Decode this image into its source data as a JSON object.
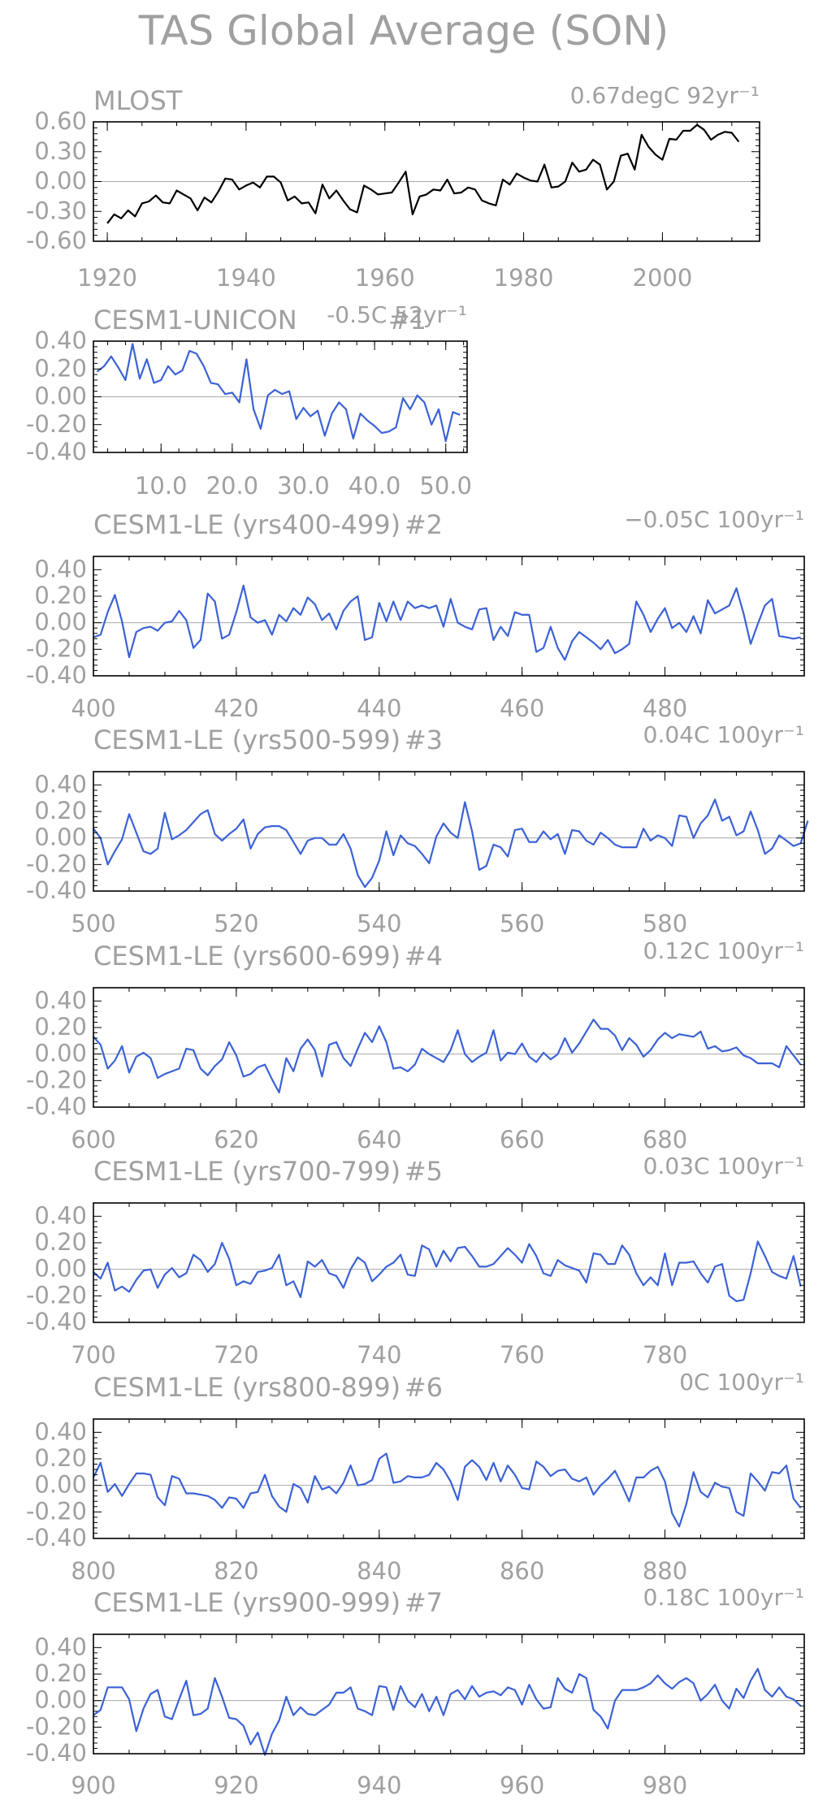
{
  "title": "TAS Global Average (SON)",
  "colors": {
    "observed": "#000000",
    "model": "#3b62d6",
    "zero_line": "#a8a8a8",
    "text": "#a0a0a0"
  },
  "chart_data": [
    {
      "type": "line",
      "label": "MLOST",
      "trend": "0.67degC 92yr⁻¹",
      "xlim": [
        1918,
        2014
      ],
      "ylim": [
        -0.6,
        0.6
      ],
      "xticks": [
        1920,
        1940,
        1960,
        1980,
        2000
      ],
      "yticks": [
        -0.6,
        -0.3,
        0.0,
        0.3,
        0.6
      ],
      "yticklabels": [
        "-0.60",
        "-0.30",
        "0.00",
        "0.30",
        "0.60"
      ],
      "color": "observed",
      "x_start": 1920,
      "x_step": 1,
      "y": [
        -0.42,
        -0.33,
        -0.37,
        -0.29,
        -0.35,
        -0.22,
        -0.2,
        -0.14,
        -0.21,
        -0.22,
        -0.09,
        -0.13,
        -0.17,
        -0.29,
        -0.16,
        -0.21,
        -0.1,
        0.03,
        0.02,
        -0.08,
        -0.04,
        -0.01,
        -0.06,
        0.05,
        0.05,
        -0.01,
        -0.19,
        -0.15,
        -0.22,
        -0.21,
        -0.32,
        -0.03,
        -0.17,
        -0.09,
        -0.19,
        -0.28,
        -0.31,
        -0.04,
        -0.08,
        -0.13,
        -0.12,
        -0.11,
        -0.01,
        0.1,
        -0.33,
        -0.15,
        -0.13,
        -0.08,
        -0.09,
        0.02,
        -0.12,
        -0.11,
        -0.06,
        -0.08,
        -0.19,
        -0.22,
        -0.24,
        0.02,
        -0.03,
        0.08,
        0.04,
        0.01,
        0.0,
        0.17,
        -0.06,
        -0.05,
        0.0,
        0.19,
        0.1,
        0.12,
        0.22,
        0.17,
        -0.08,
        0.0,
        0.26,
        0.28,
        0.12,
        0.47,
        0.35,
        0.27,
        0.22,
        0.43,
        0.42,
        0.51,
        0.51,
        0.57,
        0.52,
        0.42,
        0.47,
        0.5,
        0.49,
        0.4
      ]
    },
    {
      "type": "line",
      "label": "CESM1-UNICON",
      "number": "#1",
      "trend": "-0.5C 52yr⁻¹",
      "xlim": [
        0.5,
        53
      ],
      "ylim": [
        -0.4,
        0.4
      ],
      "xticks": [
        10,
        20,
        30,
        40,
        50
      ],
      "xticklabels": [
        "10.0",
        "20.0",
        "30.0",
        "40.0",
        "50.0"
      ],
      "yticks": [
        -0.4,
        -0.2,
        0.0,
        0.2,
        0.4
      ],
      "yticklabels": [
        "-0.40",
        "-0.20",
        "0.00",
        "0.20",
        "0.40"
      ],
      "color": "model",
      "x_start": 1,
      "x_step": 1,
      "y": [
        0.18,
        0.22,
        0.29,
        0.21,
        0.12,
        0.38,
        0.13,
        0.27,
        0.1,
        0.12,
        0.22,
        0.16,
        0.19,
        0.33,
        0.31,
        0.22,
        0.1,
        0.09,
        0.02,
        0.03,
        -0.04,
        0.27,
        -0.09,
        -0.23,
        0.01,
        0.05,
        0.02,
        0.04,
        -0.16,
        -0.08,
        -0.14,
        -0.1,
        -0.28,
        -0.12,
        -0.04,
        -0.09,
        -0.3,
        -0.12,
        -0.17,
        -0.21,
        -0.26,
        -0.25,
        -0.22,
        -0.01,
        -0.09,
        0.01,
        -0.04,
        -0.2,
        -0.09,
        -0.32,
        -0.11,
        -0.13
      ]
    },
    {
      "type": "line",
      "label": "CESM1-LE (yrs400-499)",
      "number": "#2",
      "trend": "−0.05C 100yr⁻¹",
      "xlim": [
        400,
        499.5
      ],
      "ylim": [
        -0.4,
        0.5
      ],
      "xticks": [
        400,
        420,
        440,
        460,
        480
      ],
      "yticks": [
        -0.4,
        -0.2,
        0.0,
        0.2,
        0.4
      ],
      "yticklabels": [
        "-0.40",
        "-0.20",
        "0.00",
        "0.20",
        "0.40"
      ],
      "color": "model",
      "x_start": 400,
      "x_step": 1,
      "y": [
        -0.11,
        -0.09,
        0.08,
        0.21,
        0.01,
        -0.26,
        -0.07,
        -0.04,
        -0.03,
        -0.06,
        0.0,
        0.01,
        0.09,
        0.02,
        -0.19,
        -0.13,
        0.22,
        0.16,
        -0.12,
        -0.09,
        0.08,
        0.28,
        0.04,
        0.0,
        0.02,
        -0.09,
        0.06,
        0.01,
        0.11,
        0.06,
        0.19,
        0.14,
        0.02,
        0.07,
        -0.05,
        0.09,
        0.16,
        0.2,
        -0.13,
        -0.11,
        0.15,
        0.01,
        0.16,
        0.02,
        0.16,
        0.11,
        0.13,
        0.11,
        0.13,
        -0.03,
        0.18,
        0.0,
        -0.03,
        -0.05,
        0.1,
        0.11,
        -0.13,
        -0.03,
        -0.1,
        0.08,
        0.06,
        0.06,
        -0.22,
        -0.19,
        -0.03,
        -0.19,
        -0.28,
        -0.14,
        -0.07,
        -0.11,
        -0.15,
        -0.2,
        -0.13,
        -0.23,
        -0.2,
        -0.16,
        0.16,
        0.06,
        -0.07,
        0.03,
        0.11,
        -0.04,
        0.0,
        -0.07,
        0.05,
        -0.08,
        0.17,
        0.07,
        0.1,
        0.13,
        0.26,
        0.07,
        -0.16,
        -0.01,
        0.13,
        0.18,
        -0.1,
        -0.11,
        -0.12,
        -0.11
      ]
    },
    {
      "type": "line",
      "label": "CESM1-LE (yrs500-599)",
      "number": "#3",
      "trend": "0.04C 100yr⁻¹",
      "xlim": [
        500,
        599.5
      ],
      "ylim": [
        -0.4,
        0.5
      ],
      "xticks": [
        500,
        520,
        540,
        560,
        580
      ],
      "yticks": [
        -0.4,
        -0.2,
        0.0,
        0.2,
        0.4
      ],
      "yticklabels": [
        "-0.40",
        "-0.20",
        "0.00",
        "0.20",
        "0.40"
      ],
      "color": "model",
      "x_start": 500,
      "x_step": 1,
      "y": [
        0.07,
        0.0,
        -0.2,
        -0.1,
        -0.01,
        0.18,
        0.04,
        -0.1,
        -0.12,
        -0.08,
        0.19,
        -0.01,
        0.02,
        0.06,
        0.12,
        0.18,
        0.21,
        0.03,
        -0.02,
        0.03,
        0.07,
        0.14,
        -0.08,
        0.03,
        0.08,
        0.09,
        0.09,
        0.06,
        -0.03,
        -0.12,
        -0.02,
        0.0,
        0.0,
        -0.05,
        -0.05,
        0.03,
        -0.08,
        -0.28,
        -0.37,
        -0.3,
        -0.17,
        0.05,
        -0.13,
        0.02,
        -0.04,
        -0.06,
        -0.12,
        -0.19,
        0.01,
        0.11,
        0.04,
        0.0,
        0.27,
        0.05,
        -0.24,
        -0.21,
        -0.05,
        -0.07,
        -0.14,
        0.06,
        0.07,
        -0.03,
        -0.03,
        0.05,
        -0.01,
        0.03,
        -0.12,
        0.06,
        0.05,
        -0.02,
        -0.05,
        0.04,
        0.0,
        -0.05,
        -0.07,
        -0.07,
        -0.07,
        0.07,
        -0.02,
        0.02,
        0.0,
        -0.06,
        0.17,
        0.16,
        0.0,
        0.11,
        0.17,
        0.29,
        0.13,
        0.16,
        0.02,
        0.05,
        0.2,
        0.06,
        -0.12,
        -0.08,
        0.02,
        -0.02,
        -0.06,
        -0.04,
        0.13
      ]
    },
    {
      "type": "line",
      "label": "CESM1-LE (yrs600-699)",
      "number": "#4",
      "trend": "0.12C 100yr⁻¹",
      "xlim": [
        600,
        699.5
      ],
      "ylim": [
        -0.4,
        0.5
      ],
      "xticks": [
        600,
        620,
        640,
        660,
        680
      ],
      "yticks": [
        -0.4,
        -0.2,
        0.0,
        0.2,
        0.4
      ],
      "yticklabels": [
        "-0.40",
        "-0.20",
        "0.00",
        "0.20",
        "0.40"
      ],
      "color": "model",
      "x_start": 600,
      "x_step": 1,
      "y": [
        0.13,
        0.07,
        -0.11,
        -0.05,
        0.06,
        -0.14,
        -0.02,
        0.01,
        -0.03,
        -0.18,
        -0.15,
        -0.13,
        -0.11,
        0.04,
        0.03,
        -0.11,
        -0.16,
        -0.09,
        -0.04,
        0.09,
        -0.01,
        -0.17,
        -0.15,
        -0.1,
        -0.08,
        -0.19,
        -0.29,
        -0.03,
        -0.13,
        0.04,
        0.11,
        0.03,
        -0.17,
        0.07,
        0.09,
        -0.03,
        -0.09,
        0.04,
        0.16,
        0.09,
        0.21,
        0.09,
        -0.11,
        -0.1,
        -0.13,
        -0.08,
        0.04,
        0.0,
        -0.03,
        -0.06,
        0.03,
        0.18,
        0.0,
        -0.06,
        -0.02,
        0.01,
        0.18,
        -0.05,
        0.01,
        0.0,
        0.08,
        -0.02,
        -0.06,
        0.01,
        -0.04,
        0.0,
        0.12,
        0.01,
        0.08,
        0.17,
        0.26,
        0.19,
        0.19,
        0.14,
        0.03,
        0.12,
        0.07,
        -0.02,
        0.03,
        0.11,
        0.16,
        0.12,
        0.15,
        0.14,
        0.13,
        0.17,
        0.04,
        0.06,
        0.02,
        0.03,
        0.05,
        -0.01,
        -0.03,
        -0.07,
        -0.07,
        -0.07,
        -0.1,
        0.06,
        -0.01,
        -0.08
      ]
    },
    {
      "type": "line",
      "label": "CESM1-LE (yrs700-799)",
      "number": "#5",
      "trend": "0.03C 100yr⁻¹",
      "xlim": [
        700,
        799.5
      ],
      "ylim": [
        -0.4,
        0.5
      ],
      "xticks": [
        700,
        720,
        740,
        760,
        780
      ],
      "yticks": [
        -0.4,
        -0.2,
        0.0,
        0.2,
        0.4
      ],
      "yticklabels": [
        "-0.40",
        "-0.20",
        "0.00",
        "0.20",
        "0.40"
      ],
      "color": "model",
      "x_start": 700,
      "x_step": 1,
      "y": [
        -0.02,
        -0.07,
        0.05,
        -0.16,
        -0.13,
        -0.17,
        -0.08,
        -0.01,
        0.0,
        -0.14,
        -0.04,
        0.01,
        -0.06,
        -0.03,
        0.11,
        0.07,
        -0.02,
        0.04,
        0.2,
        0.08,
        -0.12,
        -0.09,
        -0.11,
        -0.02,
        -0.01,
        0.01,
        0.11,
        -0.12,
        -0.09,
        -0.21,
        0.06,
        0.02,
        0.07,
        -0.03,
        -0.05,
        -0.14,
        0.0,
        0.09,
        0.05,
        -0.09,
        -0.04,
        0.02,
        0.05,
        0.11,
        -0.04,
        -0.05,
        0.18,
        0.15,
        0.02,
        0.14,
        0.06,
        0.16,
        0.17,
        0.1,
        0.02,
        0.02,
        0.04,
        0.1,
        0.16,
        0.11,
        0.05,
        0.19,
        0.1,
        -0.03,
        -0.05,
        0.07,
        0.03,
        0.01,
        -0.01,
        -0.1,
        0.12,
        0.11,
        0.04,
        0.04,
        0.18,
        0.11,
        -0.03,
        -0.12,
        -0.06,
        -0.12,
        0.12,
        -0.12,
        0.05,
        0.05,
        0.06,
        -0.03,
        -0.1,
        0.02,
        0.04,
        -0.2,
        -0.24,
        -0.23,
        -0.03,
        0.21,
        0.1,
        -0.02,
        -0.05,
        -0.07,
        0.1,
        -0.13
      ]
    },
    {
      "type": "line",
      "label": "CESM1-LE (yrs800-899)",
      "number": "#6",
      "trend": "0C 100yr⁻¹",
      "xlim": [
        800,
        899.5
      ],
      "ylim": [
        -0.4,
        0.5
      ],
      "xticks": [
        800,
        820,
        840,
        860,
        880
      ],
      "yticks": [
        -0.4,
        -0.2,
        0.0,
        0.2,
        0.4
      ],
      "yticklabels": [
        "-0.40",
        "-0.20",
        "0.00",
        "0.20",
        "0.40"
      ],
      "color": "model",
      "x_start": 800,
      "x_step": 1,
      "y": [
        0.06,
        0.17,
        -0.05,
        0.01,
        -0.08,
        0.01,
        0.09,
        0.09,
        0.08,
        -0.09,
        -0.15,
        0.07,
        0.05,
        -0.06,
        -0.06,
        -0.07,
        -0.08,
        -0.11,
        -0.17,
        -0.09,
        -0.1,
        -0.17,
        -0.06,
        -0.05,
        0.08,
        -0.08,
        -0.16,
        -0.2,
        0.01,
        -0.02,
        -0.13,
        0.07,
        -0.03,
        -0.01,
        -0.06,
        0.02,
        0.15,
        0.0,
        0.01,
        0.04,
        0.2,
        0.24,
        0.02,
        0.03,
        0.07,
        0.06,
        0.06,
        0.08,
        0.17,
        0.12,
        0.03,
        -0.11,
        0.14,
        0.19,
        0.14,
        0.04,
        0.17,
        0.03,
        0.15,
        0.08,
        -0.02,
        -0.03,
        0.18,
        0.14,
        0.07,
        0.11,
        0.12,
        0.05,
        0.03,
        0.06,
        -0.07,
        0.0,
        0.05,
        0.11,
        0.0,
        -0.12,
        0.06,
        0.06,
        0.11,
        0.14,
        0.03,
        -0.21,
        -0.31,
        -0.14,
        0.1,
        -0.05,
        -0.09,
        0.02,
        -0.01,
        -0.02,
        -0.2,
        -0.23,
        0.09,
        0.03,
        -0.04,
        0.1,
        0.09,
        0.15,
        -0.1,
        -0.17
      ]
    },
    {
      "type": "line",
      "label": "CESM1-LE (yrs900-999)",
      "number": "#7",
      "trend": "0.18C 100yr⁻¹",
      "xlim": [
        900,
        999.5
      ],
      "ylim": [
        -0.4,
        0.5
      ],
      "xticks": [
        900,
        920,
        940,
        960,
        980
      ],
      "yticks": [
        -0.4,
        -0.2,
        0.0,
        0.2,
        0.4
      ],
      "yticklabels": [
        "-0.40",
        "-0.20",
        "0.00",
        "0.20",
        "0.40"
      ],
      "color": "model",
      "x_start": 900,
      "x_step": 1,
      "y": [
        -0.11,
        -0.07,
        0.1,
        0.1,
        0.1,
        0.01,
        -0.23,
        -0.06,
        0.05,
        0.08,
        -0.12,
        -0.14,
        0.01,
        0.15,
        -0.11,
        -0.1,
        -0.06,
        0.17,
        0.03,
        -0.13,
        -0.14,
        -0.19,
        -0.33,
        -0.24,
        -0.41,
        -0.25,
        -0.15,
        0.03,
        -0.11,
        -0.05,
        -0.1,
        -0.11,
        -0.07,
        -0.03,
        0.06,
        0.06,
        0.1,
        -0.06,
        -0.08,
        -0.11,
        0.11,
        0.1,
        -0.07,
        0.11,
        0.0,
        -0.05,
        0.05,
        -0.08,
        0.03,
        -0.11,
        0.05,
        0.08,
        0.01,
        0.11,
        0.03,
        0.06,
        0.07,
        0.04,
        0.1,
        0.08,
        -0.03,
        0.12,
        0.01,
        -0.06,
        -0.05,
        0.17,
        0.09,
        0.06,
        0.2,
        0.17,
        -0.07,
        -0.12,
        -0.21,
        0.0,
        0.08,
        0.08,
        0.08,
        0.1,
        0.13,
        0.19,
        0.13,
        0.09,
        0.14,
        0.17,
        0.13,
        0.0,
        0.05,
        0.12,
        0.0,
        -0.06,
        0.09,
        0.02,
        0.15,
        0.24,
        0.08,
        0.03,
        0.1,
        0.03,
        0.01,
        -0.04
      ]
    }
  ]
}
